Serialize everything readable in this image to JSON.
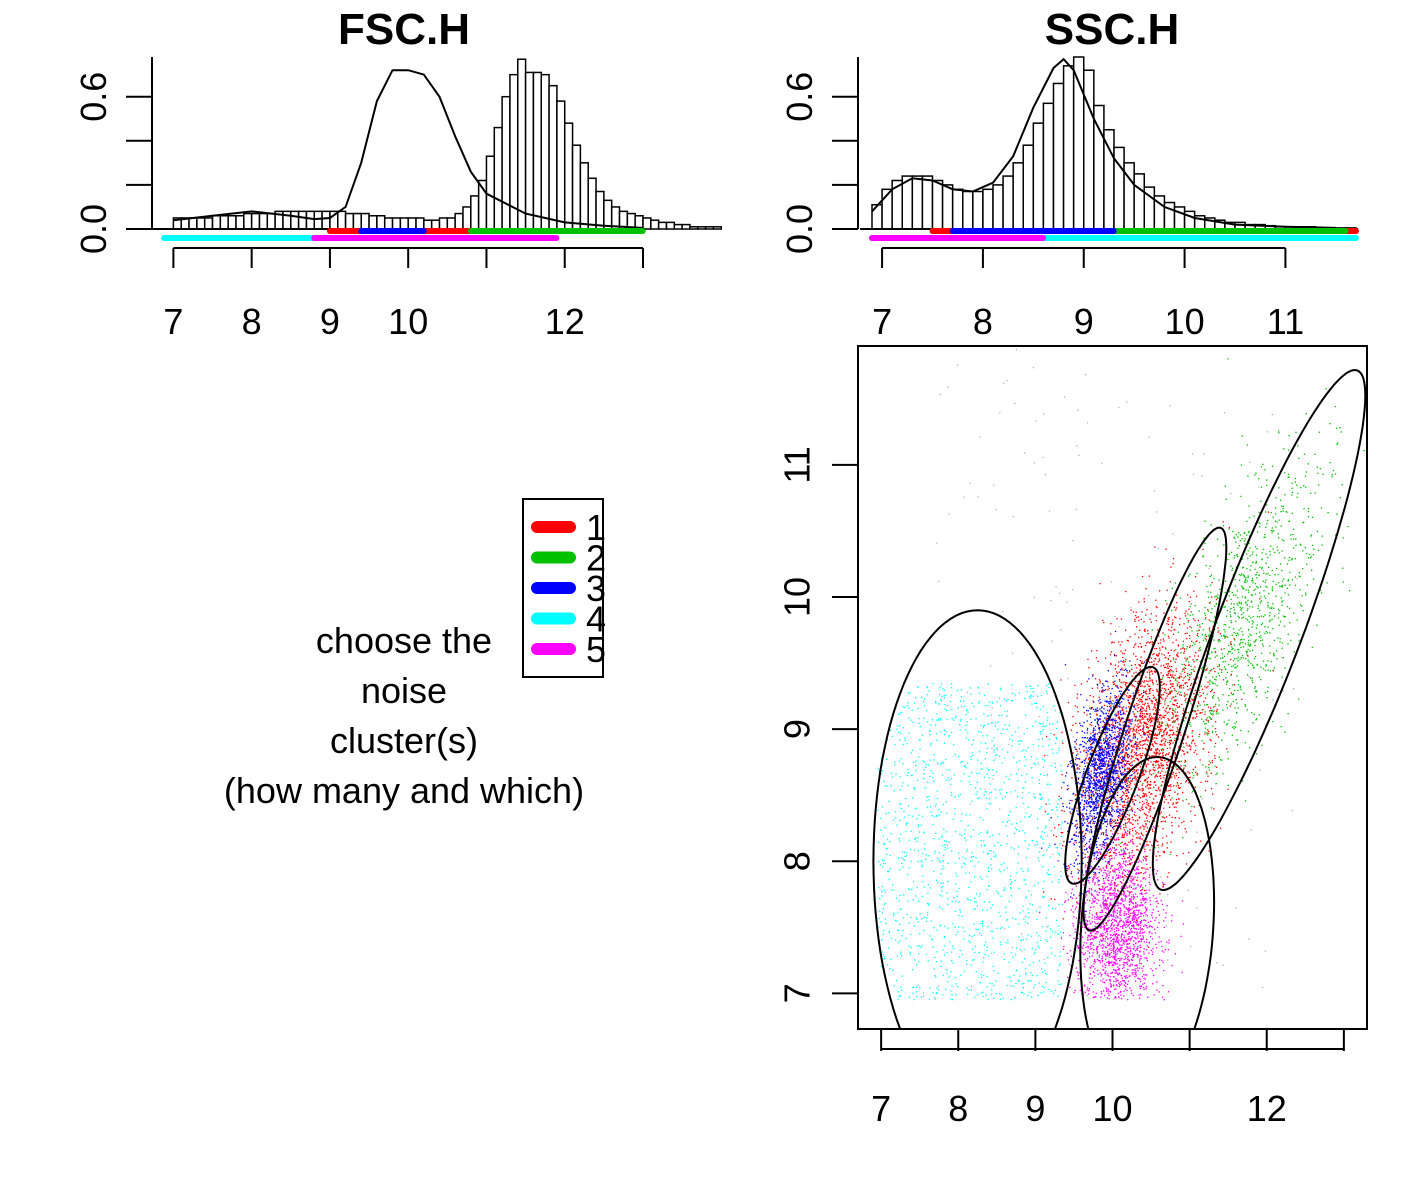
{
  "prompt_lines": [
    "choose the",
    "noise",
    "cluster(s)",
    "(how many and which)"
  ],
  "legend": {
    "items": [
      {
        "label": "1",
        "color": "#ff0000"
      },
      {
        "label": "2",
        "color": "#00c000"
      },
      {
        "label": "3",
        "color": "#0000ff"
      },
      {
        "label": "4",
        "color": "#00ffff"
      },
      {
        "label": "5",
        "color": "#ff00ff"
      }
    ]
  },
  "chart_data": [
    {
      "type": "bar",
      "title": "FSC.H",
      "xlabel": "",
      "ylabel": "",
      "xlim": [
        6.88,
        13.0
      ],
      "ylim": [
        0,
        0.78
      ],
      "x_ticks": [
        7,
        8,
        9,
        10,
        11,
        12,
        13
      ],
      "x_tick_labels": [
        "7",
        "8",
        "9",
        "10",
        "",
        "12",
        ""
      ],
      "y_ticks": [
        0.0,
        0.2,
        0.4,
        0.6
      ],
      "y_tick_labels": [
        "0.0",
        "",
        "",
        "0.6"
      ],
      "bin_width": 0.1,
      "bins_start": 7.0,
      "density": [
        0.05,
        0.05,
        0.05,
        0.05,
        0.05,
        0.06,
        0.06,
        0.06,
        0.06,
        0.07,
        0.07,
        0.07,
        0.07,
        0.08,
        0.08,
        0.08,
        0.08,
        0.08,
        0.08,
        0.08,
        0.08,
        0.08,
        0.07,
        0.07,
        0.07,
        0.06,
        0.06,
        0.05,
        0.05,
        0.05,
        0.05,
        0.05,
        0.04,
        0.04,
        0.05,
        0.05,
        0.07,
        0.1,
        0.15,
        0.22,
        0.33,
        0.46,
        0.6,
        0.7,
        0.77,
        0.71,
        0.71,
        0.7,
        0.65,
        0.58,
        0.48,
        0.38,
        0.3,
        0.23,
        0.17,
        0.13,
        0.1,
        0.08,
        0.07,
        0.06,
        0.05,
        0.04,
        0.03,
        0.03,
        0.02,
        0.02,
        0.01,
        0.01,
        0.01,
        0.01
      ],
      "density_curve": {
        "x": [
          7.0,
          7.5,
          8.0,
          8.5,
          8.8,
          9.0,
          9.2,
          9.4,
          9.6,
          9.8,
          10.0,
          10.2,
          10.4,
          10.6,
          10.8,
          11.0,
          11.5,
          12.0,
          12.5,
          13.0
        ],
        "y": [
          0.04,
          0.06,
          0.08,
          0.06,
          0.045,
          0.05,
          0.1,
          0.3,
          0.58,
          0.72,
          0.72,
          0.7,
          0.6,
          0.42,
          0.26,
          0.16,
          0.07,
          0.03,
          0.015,
          0.005
        ]
      },
      "rug": [
        {
          "cluster": "1",
          "color": "#ff0000",
          "range": [
            9.0,
            11.9
          ]
        },
        {
          "cluster": "2",
          "color": "#00c000",
          "range": [
            10.8,
            13.0
          ]
        },
        {
          "cluster": "3",
          "color": "#0000ff",
          "range": [
            9.4,
            10.2
          ]
        },
        {
          "cluster": "4",
          "color": "#00ffff",
          "range": [
            6.88,
            9.3
          ]
        },
        {
          "cluster": "5",
          "color": "#ff00ff",
          "range": [
            8.8,
            11.9
          ]
        }
      ]
    },
    {
      "type": "bar",
      "title": "SSC.H",
      "xlabel": "",
      "ylabel": "",
      "xlim": [
        6.9,
        11.7
      ],
      "ylim": [
        0,
        0.78
      ],
      "x_ticks": [
        7,
        8,
        9,
        10,
        11
      ],
      "x_tick_labels": [
        "7",
        "8",
        "9",
        "10",
        "11"
      ],
      "y_ticks": [
        0.0,
        0.2,
        0.4,
        0.6
      ],
      "y_tick_labels": [
        "0.0",
        "",
        "",
        "0.6"
      ],
      "bin_width": 0.1,
      "bins_start": 6.9,
      "density": [
        0.11,
        0.18,
        0.22,
        0.24,
        0.24,
        0.24,
        0.22,
        0.2,
        0.18,
        0.17,
        0.17,
        0.18,
        0.2,
        0.24,
        0.3,
        0.38,
        0.48,
        0.57,
        0.66,
        0.74,
        0.78,
        0.72,
        0.56,
        0.45,
        0.37,
        0.3,
        0.25,
        0.19,
        0.15,
        0.12,
        0.1,
        0.08,
        0.06,
        0.05,
        0.04,
        0.03,
        0.03,
        0.02,
        0.02,
        0.015,
        0.01,
        0.01,
        0.01,
        0.01,
        0.005,
        0.005,
        0.005,
        0.005
      ],
      "density_curve": {
        "x": [
          6.9,
          7.1,
          7.3,
          7.5,
          7.7,
          7.9,
          8.1,
          8.3,
          8.5,
          8.7,
          8.8,
          8.9,
          9.1,
          9.3,
          9.5,
          9.8,
          10.1,
          10.5,
          11.0,
          11.5
        ],
        "y": [
          0.08,
          0.18,
          0.23,
          0.22,
          0.18,
          0.17,
          0.21,
          0.33,
          0.55,
          0.73,
          0.77,
          0.72,
          0.5,
          0.32,
          0.2,
          0.1,
          0.05,
          0.02,
          0.01,
          0.005
        ]
      },
      "rug": [
        {
          "cluster": "1",
          "color": "#ff0000",
          "range": [
            7.5,
            11.7
          ]
        },
        {
          "cluster": "2",
          "color": "#00c000",
          "range": [
            9.2,
            11.6
          ]
        },
        {
          "cluster": "3",
          "color": "#0000ff",
          "range": [
            7.7,
            9.3
          ]
        },
        {
          "cluster": "4",
          "color": "#00ffff",
          "range": [
            6.9,
            11.7
          ]
        },
        {
          "cluster": "5",
          "color": "#ff00ff",
          "range": [
            6.9,
            8.6
          ]
        }
      ]
    },
    {
      "type": "scatter",
      "title": "",
      "xlabel": "",
      "ylabel": "",
      "xlim": [
        6.7,
        13.3
      ],
      "ylim": [
        6.73,
        11.9
      ],
      "x_ticks": [
        7,
        8,
        9,
        10,
        11,
        12,
        13
      ],
      "x_tick_labels": [
        "7",
        "8",
        "9",
        "10",
        "",
        "12",
        ""
      ],
      "y_ticks": [
        7,
        8,
        9,
        10,
        11
      ],
      "y_tick_labels": [
        "7",
        "8",
        "9",
        "10",
        "11"
      ],
      "clusters": [
        {
          "name": "1",
          "color": "#ff0000",
          "center": [
            10.4,
            8.9
          ],
          "spread": [
            0.35,
            0.55
          ],
          "rotation_deg": 55,
          "count": 2600
        },
        {
          "name": "2",
          "color": "#00c000",
          "center": [
            11.65,
            9.8
          ],
          "spread": [
            0.33,
            0.75
          ],
          "rotation_deg": 50,
          "count": 1100
        },
        {
          "name": "3",
          "color": "#0000ff",
          "center": [
            9.85,
            8.65
          ],
          "spread": [
            0.17,
            0.33
          ],
          "rotation_deg": 70,
          "count": 1500
        },
        {
          "name": "4",
          "color": "#00ffff",
          "center": [
            8.2,
            8.0
          ],
          "spread": [
            0.7,
            0.7
          ],
          "rotation_deg": 90,
          "count": 1400
        },
        {
          "name": "5",
          "color": "#ff00ff",
          "center": [
            10.05,
            7.5
          ],
          "spread": [
            0.28,
            0.32
          ],
          "rotation_deg": 90,
          "count": 1800
        },
        {
          "name": "noise",
          "color": "#b3b3b3",
          "center": [
            10.0,
            9.3
          ],
          "spread": [
            1.8,
            1.5
          ],
          "rotation_deg": 0,
          "count": 180
        }
      ],
      "ellipses": [
        {
          "cluster": "1",
          "center": [
            10.55,
            9.0
          ],
          "semi_axes": [
            1.75,
            0.35
          ],
          "angle_deg": 60
        },
        {
          "cluster": "2",
          "center": [
            11.9,
            9.75
          ],
          "semi_axes": [
            2.35,
            0.5
          ],
          "angle_deg": 56
        },
        {
          "cluster": "3",
          "center": [
            10.0,
            8.65
          ],
          "semi_axes": [
            0.98,
            0.3
          ],
          "angle_deg": 55
        },
        {
          "cluster": "4",
          "center": [
            8.25,
            8.0
          ],
          "semi_axes": [
            1.9,
            1.35
          ],
          "angle_deg": 90
        },
        {
          "cluster": "5",
          "center": [
            10.45,
            7.5
          ],
          "semi_axes": [
            1.3,
            0.85
          ],
          "angle_deg": 80
        }
      ]
    }
  ]
}
